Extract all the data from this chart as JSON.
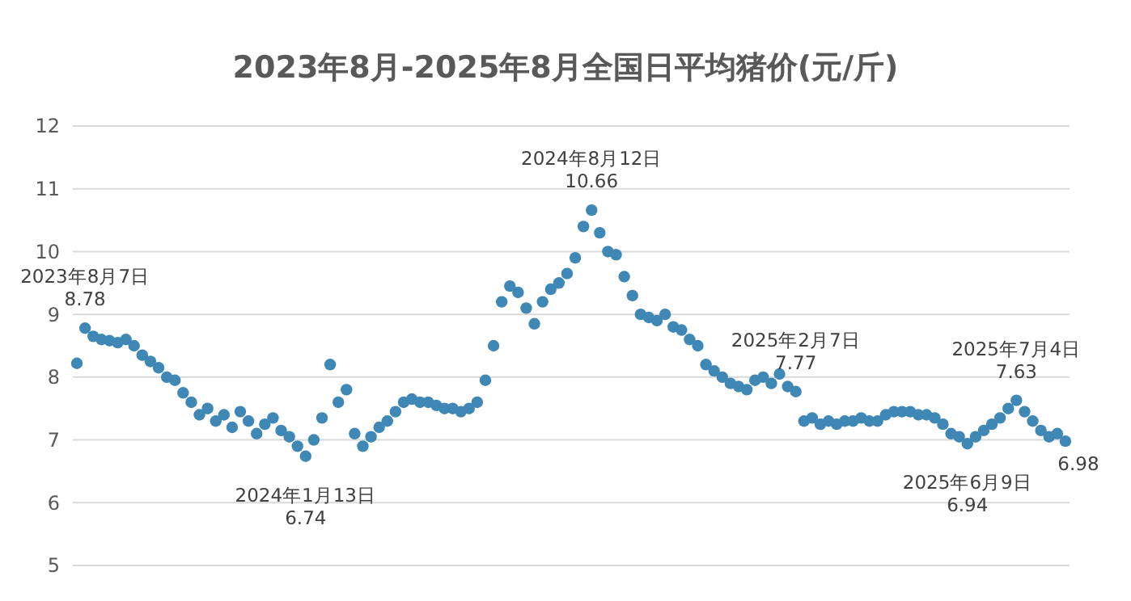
{
  "chart_data": {
    "type": "scatter",
    "title": "2023年8月-2025年8月全国日平均猪价(元/斤)",
    "categories": [
      null,
      null,
      null,
      null,
      null,
      null,
      null,
      null,
      null,
      null,
      null,
      null,
      null,
      null,
      null,
      null,
      null,
      null,
      null,
      null,
      null,
      null,
      null,
      null,
      null,
      null,
      null,
      null,
      null,
      null,
      null,
      null,
      null,
      null,
      null,
      null,
      null,
      null,
      null,
      null,
      null,
      null,
      null,
      null,
      null,
      null,
      null,
      null,
      null,
      null,
      null,
      null,
      null,
      null,
      null,
      null,
      null,
      null,
      null,
      null,
      null,
      null,
      null,
      null,
      null,
      null,
      null,
      null,
      null,
      null,
      null,
      null,
      null,
      null,
      null,
      null,
      null,
      null,
      null,
      null,
      null,
      null,
      null,
      null,
      null,
      null,
      null,
      null,
      null,
      null,
      null,
      null,
      null,
      null,
      null,
      null,
      null,
      null,
      null,
      null,
      null,
      null,
      null,
      null,
      null,
      null,
      null,
      null,
      null,
      null,
      null,
      null,
      null,
      null,
      null,
      null,
      null,
      null,
      null,
      null,
      null,
      null
    ],
    "series": [
      {
        "color": "#3f87b5",
        "values": [
          8.22,
          8.78,
          8.65,
          8.6,
          8.58,
          8.55,
          8.6,
          8.5,
          8.35,
          8.25,
          8.15,
          8.0,
          7.95,
          7.75,
          7.6,
          7.4,
          7.5,
          7.3,
          7.4,
          7.2,
          7.45,
          7.3,
          7.1,
          7.25,
          7.35,
          7.15,
          7.05,
          6.9,
          6.74,
          7.0,
          7.35,
          8.2,
          7.6,
          7.8,
          7.1,
          6.9,
          7.05,
          7.2,
          7.3,
          7.45,
          7.6,
          7.65,
          7.6,
          7.6,
          7.55,
          7.5,
          7.5,
          7.45,
          7.5,
          7.6,
          7.95,
          8.5,
          9.2,
          9.45,
          9.35,
          9.1,
          8.85,
          9.2,
          9.4,
          9.5,
          9.65,
          9.9,
          10.4,
          10.66,
          10.3,
          10.0,
          9.95,
          9.6,
          9.3,
          9.0,
          8.95,
          8.9,
          9.0,
          8.8,
          8.75,
          8.6,
          8.5,
          8.2,
          8.1,
          8.0,
          7.9,
          7.85,
          7.8,
          7.95,
          8.0,
          7.9,
          8.05,
          7.85,
          7.77,
          7.3,
          7.35,
          7.25,
          7.3,
          7.25,
          7.3,
          7.3,
          7.35,
          7.3,
          7.3,
          7.4,
          7.45,
          7.45,
          7.45,
          7.4,
          7.4,
          7.35,
          7.25,
          7.1,
          7.05,
          6.94,
          7.05,
          7.15,
          7.25,
          7.35,
          7.5,
          7.63,
          7.45,
          7.3,
          7.15,
          7.05,
          7.1,
          6.98
        ]
      }
    ],
    "ylim": [
      5,
      12
    ],
    "yticks": [
      5,
      6,
      7,
      8,
      9,
      10,
      11,
      12
    ],
    "grid": "y",
    "marker": "circle",
    "tick_labels": "y",
    "annotations": [
      {
        "text": "2023年8月7日\n8.78",
        "y": 8.78
      },
      {
        "text": "2024年1月13日\n6.74",
        "y": 6.74
      },
      {
        "text": "2024年8月12日\n10.66",
        "y": 10.66
      },
      {
        "text": "2025年2月7日\n7.77",
        "y": 7.77
      },
      {
        "text": "2025年6月9日\n6.94",
        "y": 6.94
      },
      {
        "text": "2025年7月4日\n7.63",
        "y": 7.63
      },
      {
        "text": "6.98",
        "y": 6.98
      }
    ]
  }
}
